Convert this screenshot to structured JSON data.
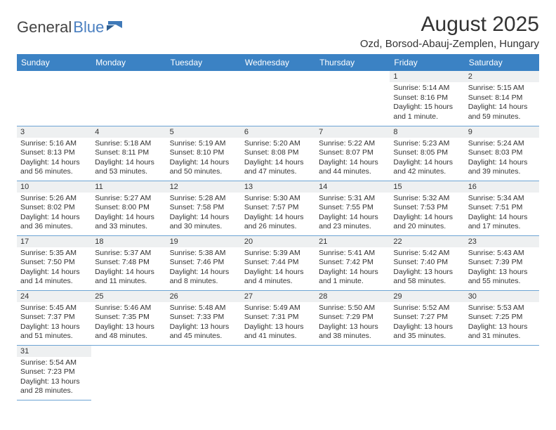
{
  "colors": {
    "header_bg": "#3b82c4",
    "header_text": "#ffffff",
    "row_border": "#6da4d4",
    "daynum_bg": "#eef0f1",
    "text": "#333333",
    "logo_blue": "#4a7fc0"
  },
  "logo": {
    "part1": "General",
    "part2": "Blue"
  },
  "title": "August 2025",
  "location": "Ozd, Borsod-Abauj-Zemplen, Hungary",
  "weekdays": [
    "Sunday",
    "Monday",
    "Tuesday",
    "Wednesday",
    "Thursday",
    "Friday",
    "Saturday"
  ],
  "weeks": [
    [
      null,
      null,
      null,
      null,
      null,
      {
        "n": "1",
        "sunrise": "Sunrise: 5:14 AM",
        "sunset": "Sunset: 8:16 PM",
        "daylight": "Daylight: 15 hours and 1 minute."
      },
      {
        "n": "2",
        "sunrise": "Sunrise: 5:15 AM",
        "sunset": "Sunset: 8:14 PM",
        "daylight": "Daylight: 14 hours and 59 minutes."
      }
    ],
    [
      {
        "n": "3",
        "sunrise": "Sunrise: 5:16 AM",
        "sunset": "Sunset: 8:13 PM",
        "daylight": "Daylight: 14 hours and 56 minutes."
      },
      {
        "n": "4",
        "sunrise": "Sunrise: 5:18 AM",
        "sunset": "Sunset: 8:11 PM",
        "daylight": "Daylight: 14 hours and 53 minutes."
      },
      {
        "n": "5",
        "sunrise": "Sunrise: 5:19 AM",
        "sunset": "Sunset: 8:10 PM",
        "daylight": "Daylight: 14 hours and 50 minutes."
      },
      {
        "n": "6",
        "sunrise": "Sunrise: 5:20 AM",
        "sunset": "Sunset: 8:08 PM",
        "daylight": "Daylight: 14 hours and 47 minutes."
      },
      {
        "n": "7",
        "sunrise": "Sunrise: 5:22 AM",
        "sunset": "Sunset: 8:07 PM",
        "daylight": "Daylight: 14 hours and 44 minutes."
      },
      {
        "n": "8",
        "sunrise": "Sunrise: 5:23 AM",
        "sunset": "Sunset: 8:05 PM",
        "daylight": "Daylight: 14 hours and 42 minutes."
      },
      {
        "n": "9",
        "sunrise": "Sunrise: 5:24 AM",
        "sunset": "Sunset: 8:03 PM",
        "daylight": "Daylight: 14 hours and 39 minutes."
      }
    ],
    [
      {
        "n": "10",
        "sunrise": "Sunrise: 5:26 AM",
        "sunset": "Sunset: 8:02 PM",
        "daylight": "Daylight: 14 hours and 36 minutes."
      },
      {
        "n": "11",
        "sunrise": "Sunrise: 5:27 AM",
        "sunset": "Sunset: 8:00 PM",
        "daylight": "Daylight: 14 hours and 33 minutes."
      },
      {
        "n": "12",
        "sunrise": "Sunrise: 5:28 AM",
        "sunset": "Sunset: 7:58 PM",
        "daylight": "Daylight: 14 hours and 30 minutes."
      },
      {
        "n": "13",
        "sunrise": "Sunrise: 5:30 AM",
        "sunset": "Sunset: 7:57 PM",
        "daylight": "Daylight: 14 hours and 26 minutes."
      },
      {
        "n": "14",
        "sunrise": "Sunrise: 5:31 AM",
        "sunset": "Sunset: 7:55 PM",
        "daylight": "Daylight: 14 hours and 23 minutes."
      },
      {
        "n": "15",
        "sunrise": "Sunrise: 5:32 AM",
        "sunset": "Sunset: 7:53 PM",
        "daylight": "Daylight: 14 hours and 20 minutes."
      },
      {
        "n": "16",
        "sunrise": "Sunrise: 5:34 AM",
        "sunset": "Sunset: 7:51 PM",
        "daylight": "Daylight: 14 hours and 17 minutes."
      }
    ],
    [
      {
        "n": "17",
        "sunrise": "Sunrise: 5:35 AM",
        "sunset": "Sunset: 7:50 PM",
        "daylight": "Daylight: 14 hours and 14 minutes."
      },
      {
        "n": "18",
        "sunrise": "Sunrise: 5:37 AM",
        "sunset": "Sunset: 7:48 PM",
        "daylight": "Daylight: 14 hours and 11 minutes."
      },
      {
        "n": "19",
        "sunrise": "Sunrise: 5:38 AM",
        "sunset": "Sunset: 7:46 PM",
        "daylight": "Daylight: 14 hours and 8 minutes."
      },
      {
        "n": "20",
        "sunrise": "Sunrise: 5:39 AM",
        "sunset": "Sunset: 7:44 PM",
        "daylight": "Daylight: 14 hours and 4 minutes."
      },
      {
        "n": "21",
        "sunrise": "Sunrise: 5:41 AM",
        "sunset": "Sunset: 7:42 PM",
        "daylight": "Daylight: 14 hours and 1 minute."
      },
      {
        "n": "22",
        "sunrise": "Sunrise: 5:42 AM",
        "sunset": "Sunset: 7:40 PM",
        "daylight": "Daylight: 13 hours and 58 minutes."
      },
      {
        "n": "23",
        "sunrise": "Sunrise: 5:43 AM",
        "sunset": "Sunset: 7:39 PM",
        "daylight": "Daylight: 13 hours and 55 minutes."
      }
    ],
    [
      {
        "n": "24",
        "sunrise": "Sunrise: 5:45 AM",
        "sunset": "Sunset: 7:37 PM",
        "daylight": "Daylight: 13 hours and 51 minutes."
      },
      {
        "n": "25",
        "sunrise": "Sunrise: 5:46 AM",
        "sunset": "Sunset: 7:35 PM",
        "daylight": "Daylight: 13 hours and 48 minutes."
      },
      {
        "n": "26",
        "sunrise": "Sunrise: 5:48 AM",
        "sunset": "Sunset: 7:33 PM",
        "daylight": "Daylight: 13 hours and 45 minutes."
      },
      {
        "n": "27",
        "sunrise": "Sunrise: 5:49 AM",
        "sunset": "Sunset: 7:31 PM",
        "daylight": "Daylight: 13 hours and 41 minutes."
      },
      {
        "n": "28",
        "sunrise": "Sunrise: 5:50 AM",
        "sunset": "Sunset: 7:29 PM",
        "daylight": "Daylight: 13 hours and 38 minutes."
      },
      {
        "n": "29",
        "sunrise": "Sunrise: 5:52 AM",
        "sunset": "Sunset: 7:27 PM",
        "daylight": "Daylight: 13 hours and 35 minutes."
      },
      {
        "n": "30",
        "sunrise": "Sunrise: 5:53 AM",
        "sunset": "Sunset: 7:25 PM",
        "daylight": "Daylight: 13 hours and 31 minutes."
      }
    ],
    [
      {
        "n": "31",
        "sunrise": "Sunrise: 5:54 AM",
        "sunset": "Sunset: 7:23 PM",
        "daylight": "Daylight: 13 hours and 28 minutes."
      },
      null,
      null,
      null,
      null,
      null,
      null
    ]
  ]
}
